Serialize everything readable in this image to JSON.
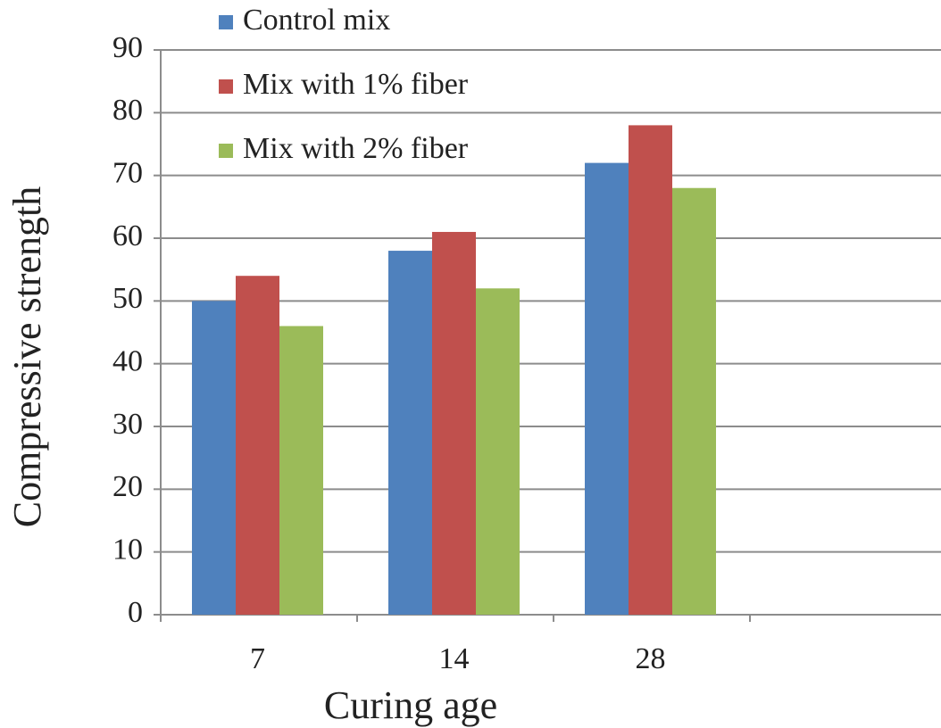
{
  "chart_data": {
    "type": "bar",
    "x_label": "Curing age",
    "y_label": "Compressive strength",
    "categories": [
      "7",
      "14",
      "28",
      null
    ],
    "series": [
      {
        "name": "Control mix",
        "color": "#4f81bd",
        "values": [
          50,
          58,
          72,
          null
        ]
      },
      {
        "name": "Mix with 1% fiber",
        "color": "#c0504d",
        "values": [
          54,
          61,
          78,
          null
        ]
      },
      {
        "name": "Mix with 2% fiber",
        "color": "#9bbb59",
        "values": [
          46,
          52,
          68,
          null
        ]
      }
    ],
    "ylim": [
      0,
      90
    ],
    "yticks": [
      0,
      10,
      20,
      30,
      40,
      50,
      60,
      70,
      80,
      90
    ],
    "grid": true,
    "legend": "top-left"
  }
}
